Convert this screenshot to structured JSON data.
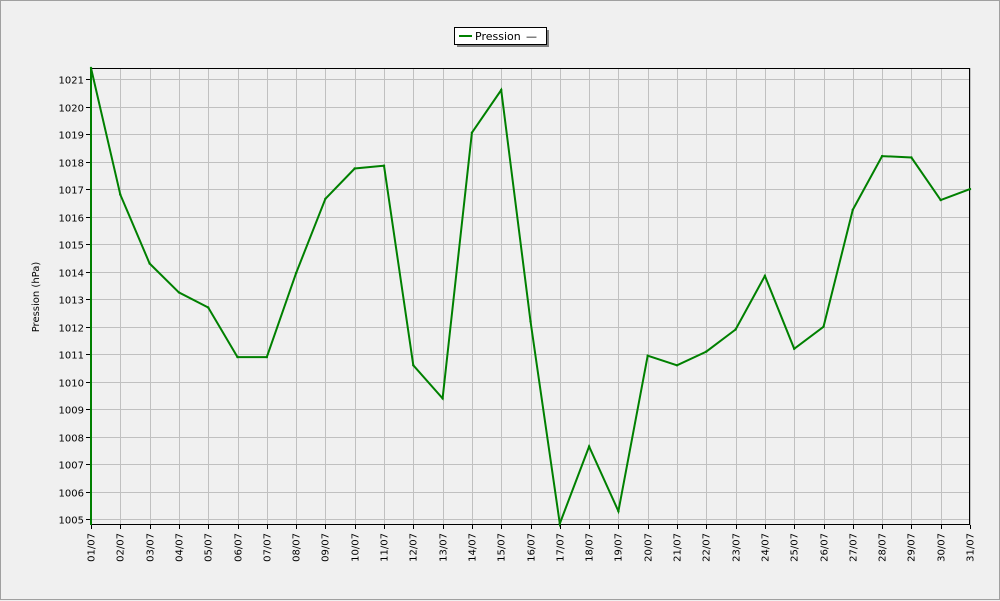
{
  "chart_data": {
    "type": "line",
    "title": "",
    "xlabel": "",
    "ylabel": "Pression (hPa)",
    "ylim": [
      1004.8,
      1021.4
    ],
    "yticks": [
      1005,
      1006,
      1007,
      1008,
      1009,
      1010,
      1011,
      1012,
      1013,
      1014,
      1015,
      1016,
      1017,
      1018,
      1019,
      1020,
      1021
    ],
    "grid": true,
    "legend_position": "top-center",
    "categories": [
      "01/07",
      "02/07",
      "03/07",
      "04/07",
      "05/07",
      "06/07",
      "07/07",
      "08/07",
      "09/07",
      "10/07",
      "11/07",
      "12/07",
      "13/07",
      "14/07",
      "15/07",
      "16/07",
      "17/07",
      "18/07",
      "19/07",
      "20/07",
      "21/07",
      "22/07",
      "23/07",
      "24/07",
      "25/07",
      "26/07",
      "27/07",
      "28/07",
      "29/07",
      "30/07",
      "31/07"
    ],
    "series": [
      {
        "name": "Pression",
        "legend_suffix": "—",
        "color": "#008000",
        "values": [
          1021.4,
          1016.8,
          1014.3,
          1013.25,
          1012.7,
          1010.9,
          1010.9,
          1013.95,
          1016.65,
          1017.75,
          1017.85,
          1010.6,
          1009.4,
          1019.05,
          1020.6,
          1012.2,
          1004.85,
          1007.65,
          1005.3,
          1010.95,
          1010.6,
          1011.1,
          1011.9,
          1013.85,
          1011.2,
          1012.0,
          1016.25,
          1018.2,
          1018.15,
          1016.6,
          1017.0
        ]
      }
    ],
    "colors": {
      "background": "#f0f0f0",
      "plot_background": "#f0f0f0",
      "grid": "#c0c0c0",
      "axis": "#000000"
    }
  }
}
